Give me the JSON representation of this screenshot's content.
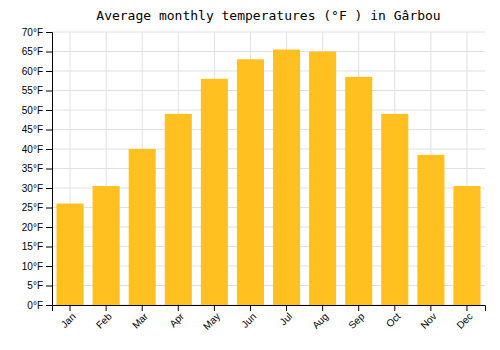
{
  "chart_data": {
    "type": "bar",
    "title": "Average monthly temperatures (°F ) in Gârbou",
    "categories": [
      "Jan",
      "Feb",
      "Mar",
      "Apr",
      "May",
      "Jun",
      "Jul",
      "Aug",
      "Sep",
      "Oct",
      "Nov",
      "Dec"
    ],
    "values": [
      26,
      30.5,
      40,
      49,
      58,
      63,
      65.5,
      65,
      58.5,
      49,
      38.5,
      30.5
    ],
    "color": "#FFC020",
    "ylim": [
      0,
      70
    ],
    "yticks": [
      {
        "value": 0,
        "label": "0°F"
      },
      {
        "value": 5,
        "label": "5°F"
      },
      {
        "value": 10,
        "label": "10°F"
      },
      {
        "value": 15,
        "label": "15°F"
      },
      {
        "value": 20,
        "label": "20°F"
      },
      {
        "value": 25,
        "label": "25°F"
      },
      {
        "value": 30,
        "label": "30°F"
      },
      {
        "value": 35,
        "label": "35°F"
      },
      {
        "value": 40,
        "label": "40°F"
      },
      {
        "value": 45,
        "label": "45°F"
      },
      {
        "value": 50,
        "label": "50°F"
      },
      {
        "value": 55,
        "label": "55°F"
      },
      {
        "value": 60,
        "label": "60°F"
      },
      {
        "value": 65,
        "label": "65°F"
      },
      {
        "value": 70,
        "label": "70°F"
      }
    ],
    "grid": true
  }
}
